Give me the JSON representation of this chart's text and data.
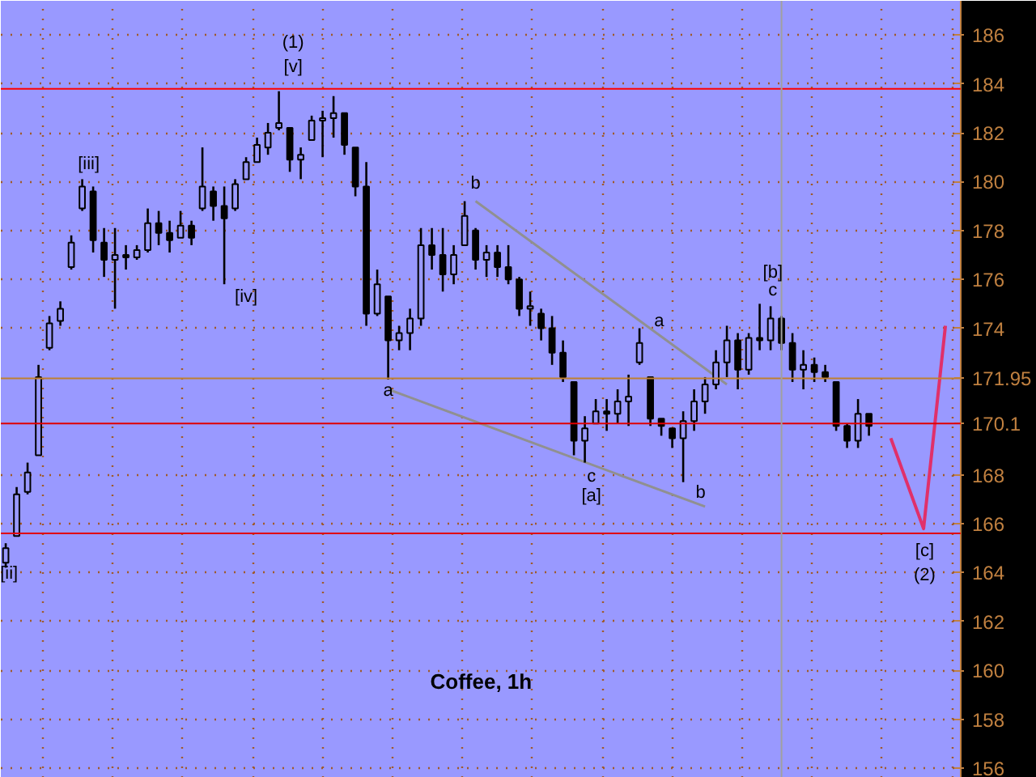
{
  "chart_data": {
    "type": "candlestick",
    "title": "Coffee, 1h",
    "categories": [
      null,
      null,
      null,
      null,
      null,
      null,
      null,
      null,
      null,
      null,
      null,
      null,
      null,
      null,
      null,
      null,
      null,
      null,
      null,
      null,
      null,
      null,
      null,
      null,
      null,
      null,
      null,
      null,
      null,
      null,
      null,
      null,
      null,
      null,
      null,
      null,
      null,
      null,
      null,
      null,
      null,
      null,
      null,
      null,
      null,
      null,
      null,
      null,
      null,
      null,
      null,
      null,
      null,
      null,
      null,
      null,
      null,
      null,
      null,
      null,
      null,
      null,
      null,
      null,
      null,
      null,
      null,
      null,
      null,
      null,
      null,
      null,
      null,
      null,
      null,
      null,
      null,
      null,
      null,
      null,
      null,
      null,
      null,
      null,
      null,
      null,
      null
    ],
    "ohlc": [
      [
        164.4,
        165.2,
        164.2,
        165.0
      ],
      [
        165.5,
        167.5,
        165.5,
        167.2
      ],
      [
        167.3,
        168.5,
        167.2,
        168.1
      ],
      [
        168.8,
        172.5,
        168.8,
        172.0
      ],
      [
        173.2,
        174.5,
        173.1,
        174.2
      ],
      [
        174.3,
        175.1,
        174.1,
        174.8
      ],
      [
        176.5,
        177.8,
        176.4,
        177.5
      ],
      [
        178.9,
        180.1,
        178.8,
        179.8
      ],
      [
        179.6,
        179.8,
        177.1,
        177.6
      ],
      [
        177.5,
        178.1,
        176.1,
        176.8
      ],
      [
        176.8,
        178.1,
        174.8,
        177.0
      ],
      [
        177.0,
        177.4,
        176.4,
        176.9
      ],
      [
        176.9,
        177.4,
        176.8,
        177.2
      ],
      [
        177.2,
        178.9,
        177.1,
        178.3
      ],
      [
        178.3,
        178.8,
        177.4,
        177.9
      ],
      [
        177.9,
        178.4,
        177.1,
        177.6
      ],
      [
        177.7,
        178.8,
        177.7,
        178.2
      ],
      [
        178.2,
        178.4,
        177.4,
        177.7
      ],
      [
        178.9,
        181.4,
        178.8,
        179.8
      ],
      [
        179.6,
        179.8,
        178.4,
        179.0
      ],
      [
        179.0,
        179.8,
        175.8,
        178.5
      ],
      [
        178.9,
        180.1,
        178.8,
        179.9
      ],
      [
        180.1,
        181.0,
        180.1,
        180.8
      ],
      [
        180.8,
        181.8,
        180.8,
        181.5
      ],
      [
        181.4,
        182.4,
        181.1,
        182.0
      ],
      [
        182.2,
        183.7,
        182.1,
        182.4
      ],
      [
        182.2,
        182.2,
        180.4,
        180.9
      ],
      [
        180.9,
        181.4,
        180.1,
        181.1
      ],
      [
        181.7,
        182.7,
        181.7,
        182.5
      ],
      [
        182.5,
        182.9,
        181.0,
        182.6
      ],
      [
        182.6,
        183.5,
        181.8,
        182.8
      ],
      [
        182.8,
        182.8,
        181.1,
        181.5
      ],
      [
        181.4,
        181.4,
        179.4,
        179.8
      ],
      [
        179.8,
        180.8,
        174.1,
        174.6
      ],
      [
        174.6,
        176.4,
        174.5,
        175.8
      ],
      [
        175.3,
        175.3,
        171.9,
        173.5
      ],
      [
        173.5,
        174.1,
        173.1,
        173.8
      ],
      [
        173.8,
        174.8,
        173.1,
        174.4
      ],
      [
        174.4,
        178.1,
        174.1,
        177.4
      ],
      [
        177.4,
        178.1,
        176.4,
        177.0
      ],
      [
        177.0,
        178.1,
        175.5,
        176.2
      ],
      [
        176.2,
        177.4,
        175.8,
        177.0
      ],
      [
        177.4,
        179.2,
        177.4,
        178.6
      ],
      [
        178.0,
        178.1,
        176.4,
        176.8
      ],
      [
        176.8,
        177.4,
        176.1,
        177.1
      ],
      [
        177.1,
        177.4,
        176.1,
        176.5
      ],
      [
        176.5,
        177.4,
        175.8,
        176.0
      ],
      [
        176.0,
        176.1,
        174.5,
        174.8
      ],
      [
        174.8,
        175.5,
        174.1,
        174.9
      ],
      [
        174.6,
        174.8,
        173.5,
        174.0
      ],
      [
        174.0,
        174.5,
        172.5,
        173.0
      ],
      [
        173.0,
        173.5,
        171.8,
        172.0
      ],
      [
        171.8,
        171.8,
        168.8,
        169.4
      ],
      [
        169.4,
        170.4,
        168.5,
        169.9
      ],
      [
        170.1,
        171.1,
        170.1,
        170.6
      ],
      [
        170.6,
        171.1,
        169.8,
        170.5
      ],
      [
        170.5,
        171.5,
        170.1,
        171.0
      ],
      [
        171.0,
        172.1,
        170.0,
        171.2
      ],
      [
        172.6,
        174.0,
        172.5,
        173.4
      ],
      [
        172.0,
        172.0,
        170.0,
        170.3
      ],
      [
        170.3,
        170.3,
        169.6,
        170.0
      ],
      [
        169.9,
        169.9,
        169.1,
        169.5
      ],
      [
        169.5,
        170.6,
        167.7,
        170.2
      ],
      [
        170.2,
        171.5,
        169.8,
        171.0
      ],
      [
        171.0,
        172.0,
        170.5,
        171.7
      ],
      [
        171.7,
        173.1,
        171.5,
        172.6
      ],
      [
        172.6,
        174.1,
        172.0,
        173.5
      ],
      [
        173.5,
        173.8,
        171.5,
        172.3
      ],
      [
        172.3,
        173.8,
        172.1,
        173.6
      ],
      [
        173.6,
        175.0,
        173.1,
        173.5
      ],
      [
        173.5,
        174.9,
        173.1,
        174.4
      ],
      [
        174.4,
        174.5,
        173.1,
        173.4
      ],
      [
        173.4,
        173.8,
        171.8,
        172.3
      ],
      [
        172.3,
        173.1,
        171.5,
        172.5
      ],
      [
        172.5,
        172.8,
        171.8,
        172.2
      ],
      [
        172.2,
        172.5,
        171.8,
        172.0
      ],
      [
        171.8,
        171.8,
        169.8,
        170.0
      ],
      [
        170.0,
        170.1,
        169.1,
        169.4
      ],
      [
        169.4,
        171.1,
        169.1,
        170.5
      ],
      [
        170.5,
        170.5,
        169.6,
        170.0
      ],
      null,
      null,
      null,
      null,
      null,
      null,
      null
    ],
    "color": "#000000",
    "series": [
      {
        "type": "line",
        "color": "#909090",
        "values": [
          null,
          null,
          null,
          null,
          null,
          null,
          null,
          null,
          null,
          null,
          null,
          null,
          null,
          null,
          null,
          null,
          null,
          null,
          null,
          null,
          null,
          null,
          null,
          null,
          null,
          null,
          null,
          null,
          null,
          null,
          null,
          null,
          null,
          null,
          null,
          null,
          null,
          null,
          null,
          null,
          null,
          null,
          null,
          179.2,
          null,
          null,
          null,
          null,
          null,
          null,
          null,
          null,
          null,
          null,
          null,
          null,
          null,
          null,
          null,
          null,
          null,
          null,
          null,
          null,
          null,
          null,
          171.7,
          null,
          null,
          null,
          null,
          null,
          null,
          null,
          null,
          null,
          null,
          null,
          null,
          null,
          null,
          null,
          null,
          null,
          null,
          null,
          null
        ]
      },
      {
        "type": "line",
        "color": "#909090",
        "values": [
          null,
          null,
          null,
          null,
          null,
          null,
          null,
          null,
          null,
          null,
          null,
          null,
          null,
          null,
          null,
          null,
          null,
          null,
          null,
          null,
          null,
          null,
          null,
          null,
          null,
          null,
          null,
          null,
          null,
          null,
          null,
          null,
          null,
          null,
          null,
          171.5,
          null,
          null,
          null,
          null,
          null,
          null,
          null,
          null,
          null,
          null,
          null,
          null,
          null,
          null,
          null,
          null,
          null,
          null,
          null,
          null,
          null,
          null,
          null,
          null,
          null,
          null,
          null,
          null,
          166.7,
          null,
          null,
          null,
          null,
          null,
          null,
          null,
          null,
          null,
          null,
          null,
          null,
          null,
          null,
          null,
          null,
          null,
          null,
          null,
          null,
          null,
          null
        ]
      },
      {
        "type": "line",
        "color": "#e0306a",
        "values": [
          null,
          null,
          null,
          null,
          null,
          null,
          null,
          null,
          null,
          null,
          null,
          null,
          null,
          null,
          null,
          null,
          null,
          null,
          null,
          null,
          null,
          null,
          null,
          null,
          null,
          null,
          null,
          null,
          null,
          null,
          null,
          null,
          null,
          null,
          null,
          null,
          null,
          null,
          null,
          null,
          null,
          null,
          null,
          null,
          null,
          null,
          null,
          null,
          null,
          null,
          null,
          null,
          null,
          null,
          null,
          null,
          null,
          null,
          null,
          null,
          null,
          null,
          null,
          null,
          null,
          null,
          null,
          null,
          null,
          null,
          null,
          null,
          null,
          null,
          null,
          null,
          null,
          null,
          null,
          null,
          null,
          169.5,
          null,
          null,
          165.8,
          null,
          174.1
        ]
      }
    ],
    "ref_lines": [
      {
        "axis": "y",
        "value": 183.8,
        "color": "#ff0000"
      },
      {
        "axis": "y",
        "value": 171.95,
        "label": "171.95",
        "color": "#c08030"
      },
      {
        "axis": "y",
        "value": 170.1,
        "label": "170.1",
        "color": "#e00000"
      },
      {
        "axis": "y",
        "value": 165.6,
        "color": "#e00000"
      }
    ],
    "annotations": [
      "[ii]",
      "[iii]",
      "[iv]",
      "[v]",
      "(1)",
      "a",
      "b",
      "c",
      "[a]",
      "a",
      "b",
      "[b]",
      "c",
      "[c]",
      "(2)"
    ],
    "ylim": [
      155.6,
      187.4
    ],
    "yticks": [
      156,
      158,
      160,
      162,
      164,
      166,
      168,
      174,
      176,
      178,
      180,
      182,
      184,
      186
    ],
    "tick_labels": "y",
    "grid": true
  }
}
